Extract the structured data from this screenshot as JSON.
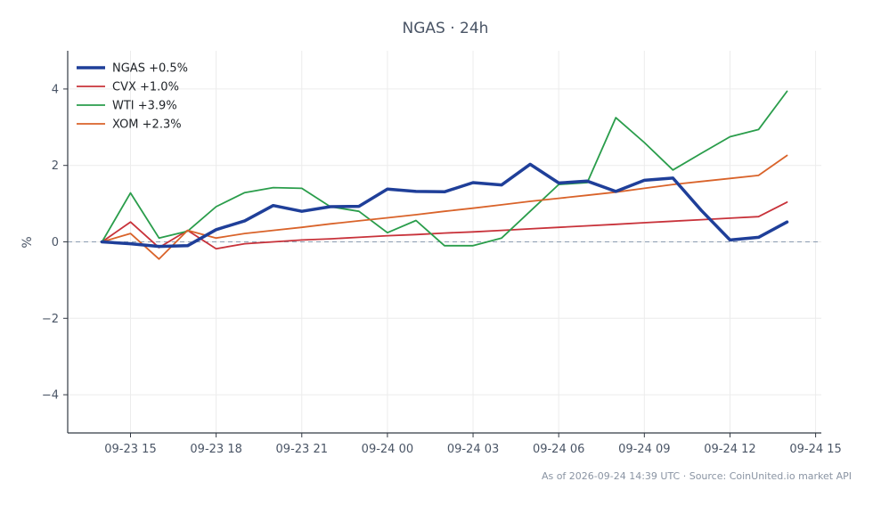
{
  "chart_data": {
    "type": "line",
    "title": "NGAS · 24h",
    "xlabel": "",
    "ylabel": "%",
    "x_tick_labels": [
      "09-23 15",
      "09-23 18",
      "09-23 21",
      "09-24 00",
      "09-24 03",
      "09-24 06",
      "09-24 09",
      "09-24 12",
      "09-24 15"
    ],
    "x_tick_hours": [
      0,
      3,
      6,
      9,
      12,
      15,
      18,
      21,
      24
    ],
    "x_range_hours": [
      -2.2,
      24.2
    ],
    "y_ticks": [
      -4,
      -2,
      0,
      2,
      4
    ],
    "y_tick_labels": [
      "−4",
      "−2",
      "0",
      "2",
      "4"
    ],
    "ylim": [
      -5,
      5
    ],
    "grid": true,
    "zero_line": true,
    "legend_position": "top-left",
    "x_hours": [
      -1,
      0,
      1,
      2,
      3,
      4,
      5,
      6,
      7,
      8,
      9,
      10,
      11,
      12,
      13,
      14,
      15,
      16,
      17,
      18,
      19,
      20,
      21,
      22,
      23
    ],
    "series": [
      {
        "name": "NGAS",
        "legend_label": "NGAS +0.5%",
        "color": "#1f3f99",
        "width": 3.5,
        "values": [
          0,
          -0.05,
          -0.12,
          -0.1,
          0.32,
          0.55,
          0.95,
          0.8,
          0.92,
          0.93,
          1.38,
          1.32,
          1.31,
          1.55,
          1.49,
          2.03,
          1.54,
          1.59,
          1.32,
          1.61,
          1.67,
          0.82,
          0.05,
          0.12,
          0.52
        ]
      },
      {
        "name": "CVX",
        "legend_label": "CVX +1.0%",
        "color": "#c8323a",
        "width": 1.8,
        "values": [
          0,
          0.52,
          -0.15,
          0.3,
          -0.18,
          -0.05,
          0.0,
          0.05,
          0.08,
          0.12,
          0.16,
          0.19,
          0.23,
          0.26,
          0.3,
          0.34,
          0.38,
          0.42,
          0.46,
          0.5,
          0.54,
          0.58,
          0.62,
          0.66,
          1.04
        ]
      },
      {
        "name": "WTI",
        "legend_label": "WTI +3.9%",
        "color": "#2a9d4b",
        "width": 1.8,
        "values": [
          0,
          1.28,
          0.1,
          0.28,
          0.92,
          1.29,
          1.42,
          1.4,
          0.92,
          0.8,
          0.24,
          0.56,
          -0.1,
          -0.1,
          0.1,
          0.8,
          1.5,
          1.55,
          3.25,
          2.6,
          1.88,
          2.32,
          2.75,
          2.94,
          3.94
        ]
      },
      {
        "name": "XOM",
        "legend_label": "XOM +2.3%",
        "color": "#d9632a",
        "width": 1.8,
        "values": [
          0,
          0.22,
          -0.45,
          0.3,
          0.1,
          0.22,
          0.3,
          0.38,
          0.47,
          0.55,
          0.63,
          0.71,
          0.8,
          0.88,
          0.97,
          1.06,
          1.14,
          1.22,
          1.3,
          1.4,
          1.5,
          1.58,
          1.66,
          1.74,
          2.26
        ]
      }
    ]
  },
  "footer": {
    "note": "As of 2026-09-24 14:39 UTC · Source: CoinUnited.io market API"
  },
  "colors": {
    "axis": "#333a44",
    "text": "#4a5566",
    "grid": "#ececec",
    "zero_line": "#8a9bb0"
  }
}
